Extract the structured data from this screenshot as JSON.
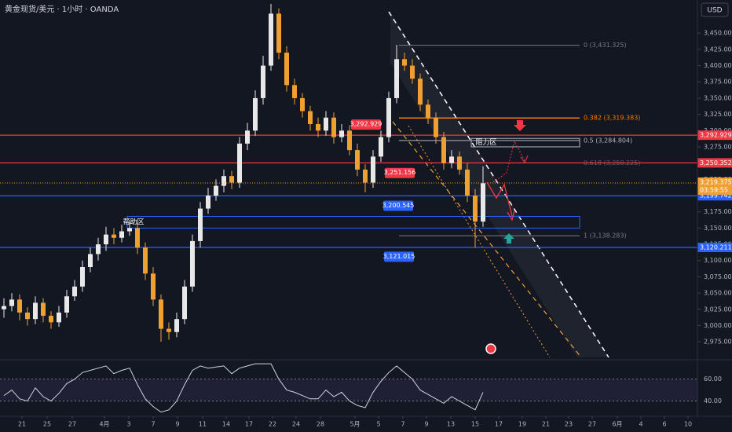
{
  "chart_data": {
    "type": "candlestick",
    "title": "黄金现货/美元 · 1小时 · OANDA",
    "currency": "USD",
    "xlim": [
      -0.5,
      88.3
    ],
    "x_ticks": [
      {
        "value": 2.3,
        "label": "21"
      },
      {
        "value": 5.5,
        "label": "25"
      },
      {
        "value": 8.7,
        "label": "27"
      },
      {
        "value": 12.8,
        "label": "4月"
      },
      {
        "value": 15.9,
        "label": "3"
      },
      {
        "value": 19,
        "label": "7"
      },
      {
        "value": 22.1,
        "label": "9"
      },
      {
        "value": 25.3,
        "label": "11"
      },
      {
        "value": 28.3,
        "label": "14"
      },
      {
        "value": 31.2,
        "label": "17"
      },
      {
        "value": 34.2,
        "label": "22"
      },
      {
        "value": 37.2,
        "label": "24"
      },
      {
        "value": 40.3,
        "label": "28"
      },
      {
        "value": 44.7,
        "label": "5月"
      },
      {
        "value": 47.7,
        "label": "5"
      },
      {
        "value": 50.8,
        "label": "7"
      },
      {
        "value": 53.8,
        "label": "9"
      },
      {
        "value": 56.9,
        "label": "13"
      },
      {
        "value": 60,
        "label": "15"
      },
      {
        "value": 63,
        "label": "17"
      },
      {
        "value": 66,
        "label": "19"
      },
      {
        "value": 69,
        "label": "21"
      },
      {
        "value": 71.9,
        "label": "23"
      },
      {
        "value": 74.9,
        "label": "27"
      },
      {
        "value": 78.1,
        "label": "6月"
      },
      {
        "value": 81.1,
        "label": "4"
      },
      {
        "value": 84.1,
        "label": "6"
      },
      {
        "value": 87.1,
        "label": "10"
      }
    ],
    "ylim": [
      2951,
      3501
    ],
    "yticks": [
      {
        "value": 2975,
        "label": "2,975.000"
      },
      {
        "value": 3000,
        "label": "3,000.000"
      },
      {
        "value": 3025,
        "label": "3,025.000"
      },
      {
        "value": 3050,
        "label": "3,050.000"
      },
      {
        "value": 3075,
        "label": "3,075.000"
      },
      {
        "value": 3100,
        "label": "3,100.000"
      },
      {
        "value": 3125,
        "label": "3,125.000"
      },
      {
        "value": 3150,
        "label": "3,150.000"
      },
      {
        "value": 3175,
        "label": "3,175.000"
      },
      {
        "value": 3200,
        "label": "3,200.000"
      },
      {
        "value": 3225,
        "label": "3,225.000"
      },
      {
        "value": 3250,
        "label": "3,250.000"
      },
      {
        "value": 3275,
        "label": "3,275.000"
      },
      {
        "value": 3300,
        "label": "3,300.000"
      },
      {
        "value": 3325,
        "label": "3,325.000"
      },
      {
        "value": 3350,
        "label": "3,350.000"
      },
      {
        "value": 3375,
        "label": "3,375.000"
      },
      {
        "value": 3400,
        "label": "3,400.000"
      },
      {
        "value": 3425,
        "label": "3,425.000"
      },
      {
        "value": 3450,
        "label": "3,450.000"
      }
    ],
    "grid": false,
    "up_color": "#e8e8e8",
    "down_color": "#f0a030",
    "open": [
      3025,
      3030,
      3040,
      3020,
      3010,
      3035,
      3015,
      3005,
      3020,
      3045,
      3060,
      3090,
      3110,
      3125,
      3140,
      3135,
      3145,
      3150,
      3120,
      3080,
      3040,
      2995,
      2990,
      3010,
      3060,
      3130,
      3180,
      3200,
      3215,
      3230,
      3220,
      3280,
      3300,
      3350,
      3400,
      3480,
      3420,
      3370,
      3350,
      3330,
      3310,
      3300,
      3320,
      3290,
      3300,
      3270,
      3240,
      3220,
      3260,
      3290,
      3350,
      3410,
      3400,
      3380,
      3340,
      3320,
      3290,
      3250,
      3260,
      3240,
      3200,
      3160
    ],
    "high": [
      3042,
      3050,
      3048,
      3028,
      3045,
      3042,
      3022,
      3030,
      3055,
      3070,
      3100,
      3120,
      3135,
      3152,
      3150,
      3155,
      3160,
      3158,
      3128,
      3090,
      3048,
      3005,
      3020,
      3070,
      3140,
      3190,
      3212,
      3225,
      3240,
      3238,
      3290,
      3312,
      3362,
      3415,
      3495,
      3488,
      3430,
      3380,
      3358,
      3338,
      3320,
      3330,
      3328,
      3310,
      3308,
      3280,
      3248,
      3270,
      3300,
      3360,
      3432,
      3420,
      3410,
      3388,
      3348,
      3328,
      3298,
      3270,
      3268,
      3250,
      3210,
      3245
    ],
    "low": [
      3012,
      3022,
      3008,
      3000,
      3002,
      3005,
      2995,
      2998,
      3012,
      3038,
      3052,
      3082,
      3100,
      3115,
      3125,
      3128,
      3138,
      3110,
      3070,
      3030,
      2975,
      2978,
      2982,
      3002,
      3052,
      3120,
      3172,
      3192,
      3205,
      3210,
      3212,
      3270,
      3292,
      3340,
      3392,
      3410,
      3360,
      3340,
      3320,
      3300,
      3290,
      3292,
      3280,
      3282,
      3262,
      3230,
      3205,
      3212,
      3252,
      3282,
      3342,
      3392,
      3372,
      3330,
      3310,
      3280,
      3240,
      3242,
      3232,
      3190,
      3120,
      3152
    ],
    "close": [
      3030,
      3040,
      3020,
      3010,
      3035,
      3015,
      3005,
      3020,
      3045,
      3060,
      3090,
      3110,
      3125,
      3140,
      3135,
      3145,
      3150,
      3120,
      3080,
      3040,
      2995,
      2990,
      3010,
      3060,
      3130,
      3180,
      3200,
      3215,
      3230,
      3220,
      3280,
      3300,
      3350,
      3400,
      3480,
      3420,
      3370,
      3350,
      3330,
      3310,
      3300,
      3320,
      3290,
      3300,
      3270,
      3240,
      3220,
      3260,
      3290,
      3350,
      3410,
      3400,
      3380,
      3340,
      3320,
      3290,
      3250,
      3260,
      3240,
      3200,
      3160,
      3219
    ],
    "price_lines": [
      {
        "value": 3292.929,
        "label": "3,292.929",
        "color": "#f23645"
      },
      {
        "value": 3250.352,
        "label": "3,250.352",
        "color": "#f23645"
      },
      {
        "value": 3199.742,
        "label": "3,199.742",
        "color": "#2962ff"
      },
      {
        "value": 3120.211,
        "label": "3,120.211",
        "color": "#2962ff"
      }
    ],
    "level_tags": [
      {
        "value": 3292.929,
        "label": "3,292.929",
        "color": "#f23645"
      },
      {
        "value": 3251.156,
        "label": "3,251.156",
        "color": "#f23645"
      },
      {
        "value": 3200.545,
        "label": "3,200.545",
        "color": "#2962ff"
      },
      {
        "value": 3121.015,
        "label": "3,121.015",
        "color": "#2962ff"
      }
    ],
    "fib_levels": [
      {
        "value": 3431.325,
        "label": "0 (3,431.325)",
        "color": "#787b86"
      },
      {
        "value": 3319.383,
        "label": "0.382 (3,319.383)",
        "color": "#f57c00"
      },
      {
        "value": 3284.804,
        "label": "0.5 (3,284.804)",
        "color": "#b2b5be"
      },
      {
        "value": 3250.225,
        "label": "0.618 (3,250.225)",
        "color": "#5d606b"
      },
      {
        "value": 3138.283,
        "label": "1 (3,138.283)",
        "color": "#787b86"
      }
    ],
    "zones": [
      {
        "label": "阻力区",
        "range": [
          3275,
          3288
        ],
        "color": "#b2b5be"
      },
      {
        "label": "帮助区",
        "range": [
          3150,
          3168
        ],
        "color": "#2962ff"
      }
    ],
    "current_price": {
      "value": 3219.375,
      "label": "3,219.375",
      "countdown": "03:59:55",
      "color": "#f0a030"
    },
    "rsi": {
      "color": "#d1d4dc",
      "ylim": [
        29.7,
        74.8
      ],
      "yticks": [
        {
          "value": 40,
          "label": "40.00"
        },
        {
          "value": 60,
          "label": "60.00"
        }
      ],
      "values": [
        45,
        50,
        42,
        40,
        52,
        44,
        40,
        47,
        56,
        60,
        66,
        68,
        70,
        72,
        65,
        68,
        70,
        55,
        42,
        35,
        30,
        32,
        40,
        55,
        68,
        72,
        70,
        71,
        72,
        65,
        70,
        72,
        74,
        74,
        74,
        60,
        50,
        48,
        45,
        42,
        42,
        50,
        44,
        48,
        40,
        36,
        34,
        48,
        58,
        66,
        72,
        66,
        60,
        50,
        46,
        42,
        38,
        44,
        40,
        36,
        32,
        48
      ]
    }
  }
}
